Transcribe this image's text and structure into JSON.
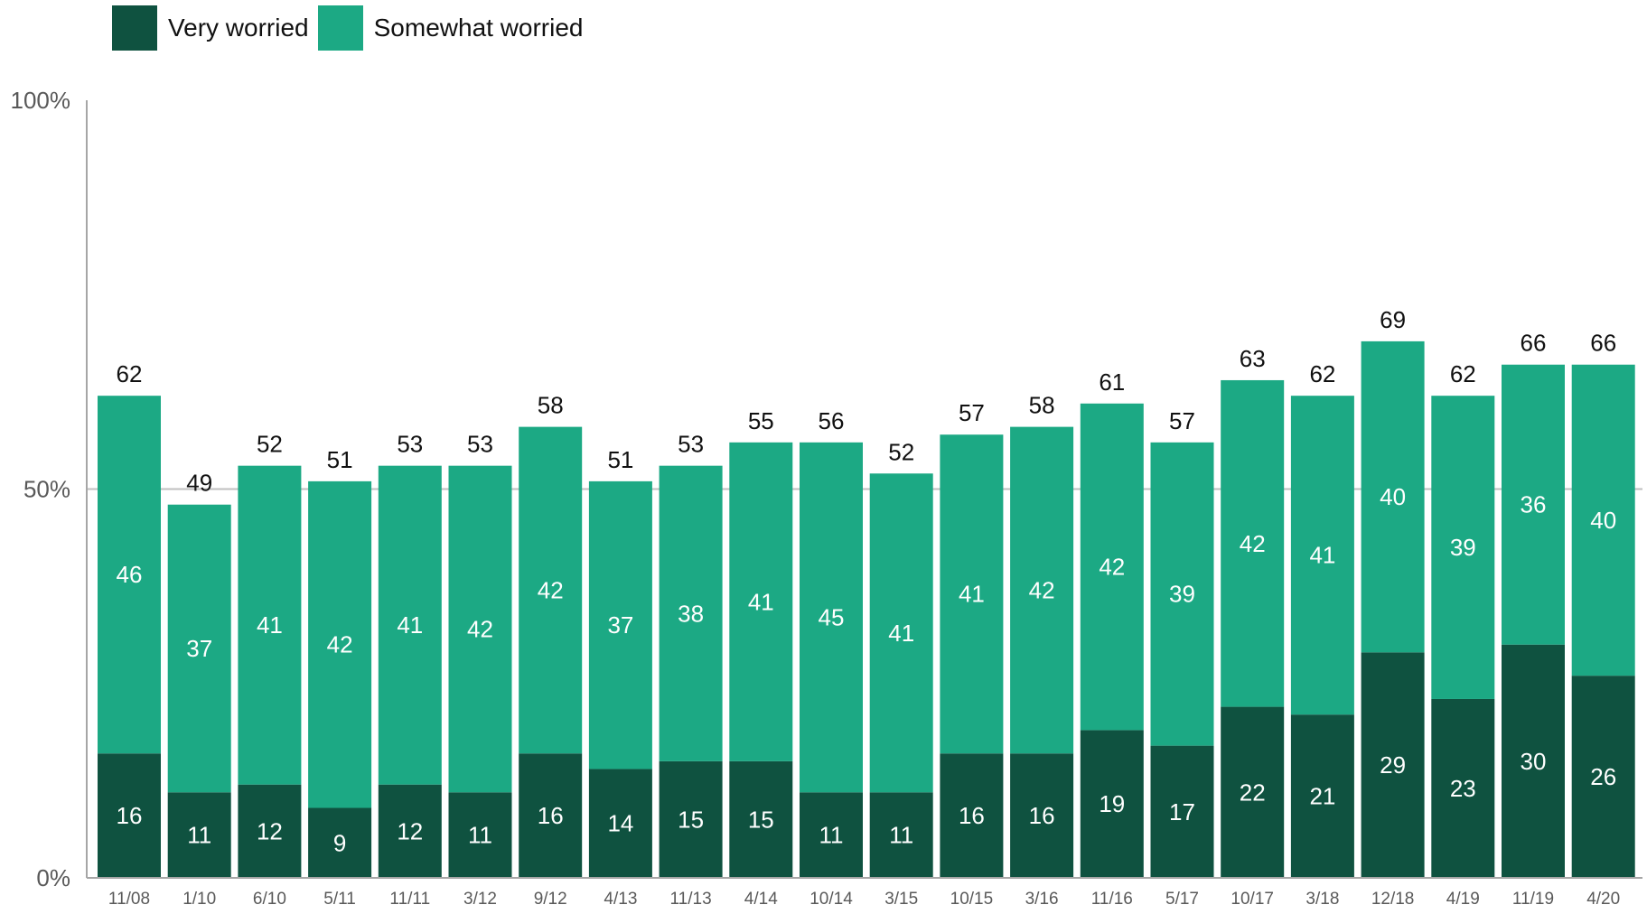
{
  "chart_data": {
    "type": "bar",
    "stacked": true,
    "categories": [
      "11/08",
      "1/10",
      "6/10",
      "5/11",
      "11/11",
      "3/12",
      "9/12",
      "4/13",
      "11/13",
      "4/14",
      "10/14",
      "3/15",
      "10/15",
      "3/16",
      "11/16",
      "5/17",
      "10/17",
      "3/18",
      "12/18",
      "4/19",
      "11/19",
      "4/20"
    ],
    "series": [
      {
        "name": "Very worried",
        "color": "#0f5240",
        "values": [
          16,
          11,
          12,
          9,
          12,
          11,
          16,
          14,
          15,
          15,
          11,
          11,
          16,
          16,
          19,
          17,
          22,
          21,
          29,
          23,
          30,
          26
        ]
      },
      {
        "name": "Somewhat worried",
        "color": "#1ca984",
        "values": [
          46,
          37,
          41,
          42,
          41,
          42,
          42,
          37,
          38,
          41,
          45,
          41,
          41,
          42,
          42,
          39,
          42,
          41,
          40,
          39,
          36,
          40
        ]
      }
    ],
    "totals": [
      62,
      49,
      52,
      51,
      53,
      53,
      58,
      51,
      53,
      55,
      56,
      52,
      57,
      58,
      61,
      57,
      63,
      62,
      69,
      62,
      66,
      66
    ],
    "ylim": [
      0,
      100
    ],
    "yticks": [
      "0%",
      "50%",
      "100%"
    ],
    "ytick_values": [
      0,
      50,
      100
    ],
    "grid": "50% line only",
    "legend_position": "top-left"
  }
}
